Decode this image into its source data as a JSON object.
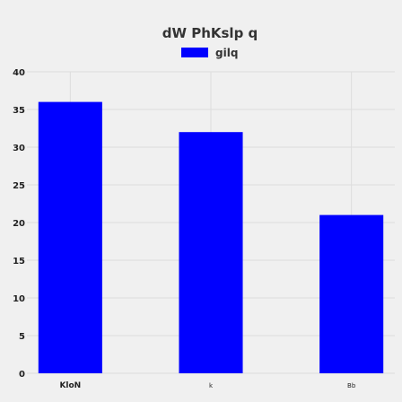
{
  "chart_data": {
    "type": "bar",
    "title": "dW PhKslp q",
    "categories": [
      "KloN",
      "k",
      "Bb"
    ],
    "series": [
      {
        "name": "gilq",
        "values": [
          36,
          32,
          21
        ]
      }
    ],
    "ylim": [
      0,
      40
    ],
    "yticks": [
      0,
      5,
      10,
      15,
      20,
      25,
      30,
      35,
      40
    ],
    "grid": true,
    "legend": "top-center",
    "colors": {
      "bar": "#0000ff",
      "background": "#f0f0f0",
      "grid": "#dddddd",
      "text": "#333333"
    }
  }
}
